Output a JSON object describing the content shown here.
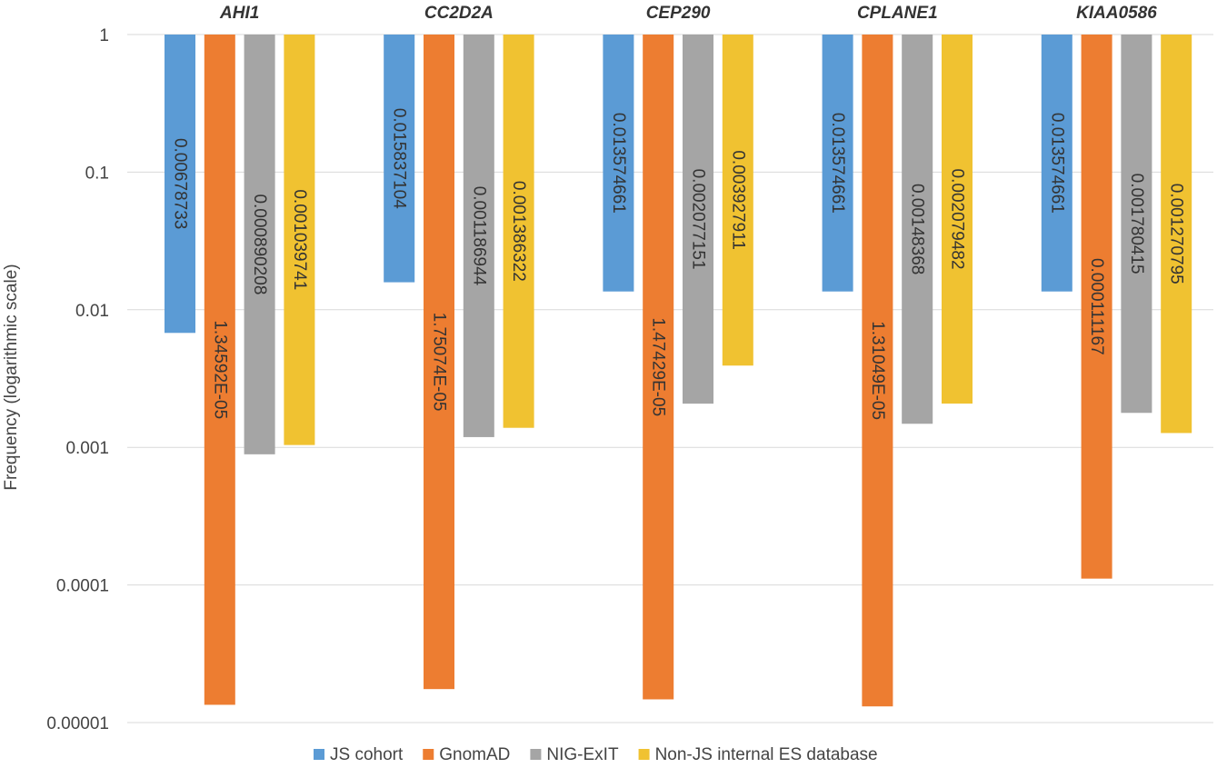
{
  "chart_data": {
    "type": "bar",
    "title": "",
    "xlabel": "",
    "ylabel": "Frequency (logarithmic scale)",
    "yscale": "log",
    "ylim": [
      1e-05,
      1
    ],
    "yticks": [
      1,
      0.1,
      0.01,
      0.001,
      0.0001,
      1e-05
    ],
    "ytick_labels": [
      "1",
      "0.1",
      "0.01",
      "0.001",
      "0.0001",
      "0.00001"
    ],
    "grid": true,
    "bars_hang_from_top": true,
    "categories": [
      "AHI1",
      "CC2D2A",
      "CEP290",
      "CPLANE1",
      "KIAA0586"
    ],
    "legend_position": "bottom",
    "series": [
      {
        "name": "JS cohort",
        "color": "#5B9BD5",
        "values": [
          0.00678733,
          0.015837104,
          0.013574661,
          0.013574661,
          0.013574661
        ],
        "labels": [
          "0.00678733",
          "0.015837104",
          "0.013574661",
          "0.013574661",
          "0.013574661"
        ]
      },
      {
        "name": "GnomAD",
        "color": "#ED7D31",
        "values": [
          1.34592e-05,
          1.75074e-05,
          1.47429e-05,
          1.31049e-05,
          0.000111167
        ],
        "labels": [
          "1.34592E-05",
          "1.75074E-05",
          "1.47429E-05",
          "1.31049E-05",
          "0.000111167"
        ]
      },
      {
        "name": "NIG-ExIT",
        "color": "#A5A5A5",
        "values": [
          0.000890208,
          0.001186944,
          0.002077151,
          0.00148368,
          0.001780415
        ],
        "labels": [
          "0.000890208",
          "0.001186944",
          "0.002077151",
          "0.00148368",
          "0.001780415"
        ]
      },
      {
        "name": "Non-JS internal ES database",
        "color": "#F0C231",
        "values": [
          0.001039741,
          0.001386322,
          0.003927911,
          0.002079482,
          0.001270795
        ],
        "labels": [
          "0.001039741",
          "0.001386322",
          "0.003927911",
          "0.002079482",
          "0.001270795"
        ]
      }
    ]
  }
}
